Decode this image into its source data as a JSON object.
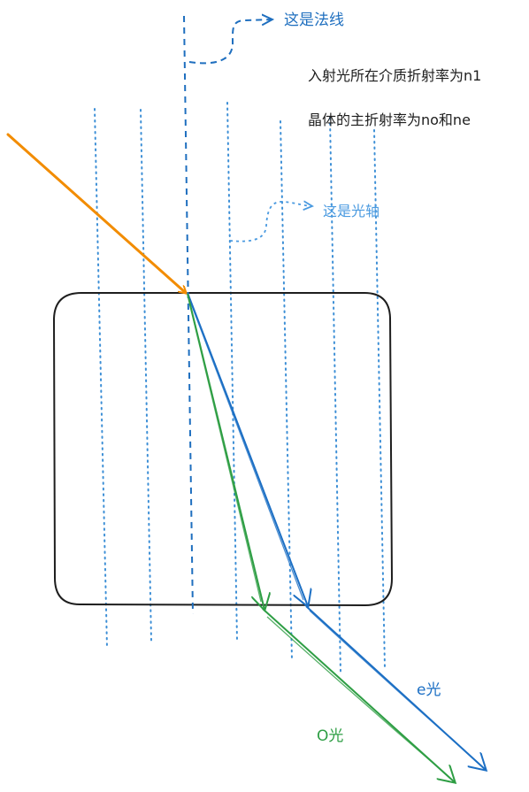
{
  "labels": {
    "normal": "这是法线",
    "optic_axis": "这是光轴",
    "incident_medium": "入射光所在介质折射率为n1",
    "crystal_indices": "晶体的主折射率为no和ne",
    "e_ray": "e光",
    "o_ray": "O光"
  },
  "colors": {
    "normal_line": "#1f6fbf",
    "optic_axis_lines": "#3d8fd6",
    "incident_ray": "#f28c00",
    "e_ray": "#1c6fc4",
    "o_ray": "#2e9e44",
    "crystal_outline": "#1e1e1e",
    "black_text": "#1e1e1e",
    "normal_text": "#1f6fbf",
    "axis_text": "#4a9ae0"
  }
}
